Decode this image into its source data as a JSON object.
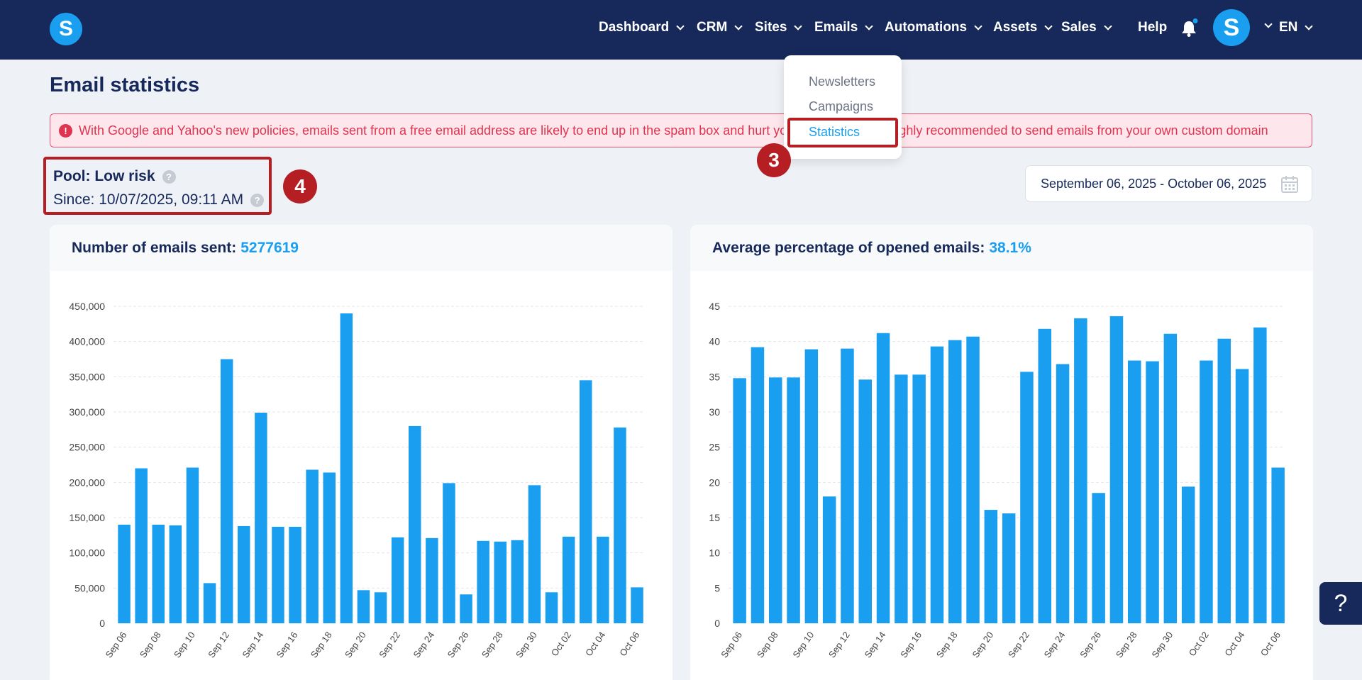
{
  "app": {
    "logo_letter": "S"
  },
  "nav": {
    "items": [
      {
        "label": "Dashboard"
      },
      {
        "label": "CRM"
      },
      {
        "label": "Sites"
      },
      {
        "label": "Emails"
      },
      {
        "label": "Automations"
      },
      {
        "label": "Assets"
      },
      {
        "label": "Sales"
      }
    ],
    "help_label": "Help",
    "avatar_letter": "S",
    "language": "EN"
  },
  "emails_menu": {
    "items": [
      {
        "label": "Newsletters"
      },
      {
        "label": "Campaigns"
      },
      {
        "label": "Statistics"
      }
    ]
  },
  "annotations": {
    "step3": "3",
    "step4": "4"
  },
  "page": {
    "title": "Email statistics",
    "alert": "With Google and Yahoo's new policies, emails sent from a free email address are likely to end up in the spam box and hurt your reputation. It is highly recommended to send emails from your own custom domain",
    "pool_label": "Pool: Low risk",
    "since_label": "Since: 10/07/2025, 09:11 AM",
    "date_range": "September 06, 2025 - October 06, 2025"
  },
  "colors": {
    "accent": "#1a9ff0",
    "navy": "#16295a",
    "annotation": "#b51f23"
  },
  "chart_data": [
    {
      "type": "bar",
      "title": "Number of emails sent:",
      "stat": "5277619",
      "ylim": [
        0,
        450000
      ],
      "yticks": [
        0,
        50000,
        100000,
        150000,
        200000,
        250000,
        300000,
        350000,
        400000,
        450000
      ],
      "ytick_labels": [
        "0",
        "50,000",
        "100,000",
        "150,000",
        "200,000",
        "250,000",
        "300,000",
        "350,000",
        "400,000",
        "450,000"
      ],
      "x_tick_labels": [
        "Sep 06",
        "Sep 08",
        "Sep 10",
        "Sep 12",
        "Sep 14",
        "Sep 16",
        "Sep 18",
        "Sep 20",
        "Sep 22",
        "Sep 24",
        "Sep 26",
        "Sep 28",
        "Sep 30",
        "Oct 02",
        "Oct 04",
        "Oct 06"
      ],
      "values": [
        140000,
        220000,
        140000,
        139000,
        221000,
        57000,
        375000,
        138000,
        299000,
        137000,
        137000,
        218000,
        214000,
        440000,
        47000,
        44000,
        122000,
        280000,
        121000,
        199000,
        41000,
        117000,
        116000,
        118000,
        196000,
        44000,
        123000,
        345000,
        123000,
        278000,
        51000
      ]
    },
    {
      "type": "bar",
      "title": "Average percentage of opened emails:",
      "stat": "38.1%",
      "ylim": [
        0,
        45
      ],
      "yticks": [
        0,
        5,
        10,
        15,
        20,
        25,
        30,
        35,
        40,
        45
      ],
      "ytick_labels": [
        "0",
        "5",
        "10",
        "15",
        "20",
        "25",
        "30",
        "35",
        "40",
        "45"
      ],
      "x_tick_labels": [
        "Sep 06",
        "Sep 08",
        "Sep 10",
        "Sep 12",
        "Sep 14",
        "Sep 16",
        "Sep 18",
        "Sep 20",
        "Sep 22",
        "Sep 24",
        "Sep 26",
        "Sep 28",
        "Sep 30",
        "Oct 02",
        "Oct 04",
        "Oct 06"
      ],
      "values": [
        34.8,
        39.2,
        34.9,
        34.9,
        38.9,
        18.0,
        39.0,
        34.6,
        41.2,
        35.3,
        35.3,
        39.3,
        40.2,
        40.7,
        16.1,
        15.6,
        35.7,
        41.8,
        36.8,
        43.3,
        18.5,
        43.6,
        37.3,
        37.2,
        41.1,
        19.4,
        37.3,
        40.4,
        36.1,
        42.0,
        22.1
      ]
    }
  ]
}
